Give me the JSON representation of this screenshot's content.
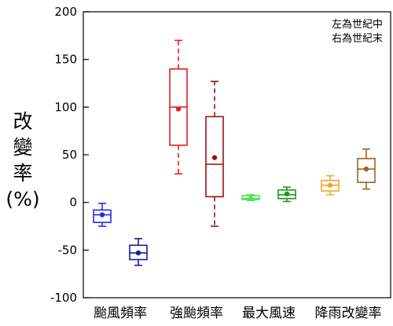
{
  "chart_data": {
    "type": "box",
    "ylabel_lines": [
      "改",
      "變",
      "率",
      "(%)"
    ],
    "ylim": [
      -100,
      200
    ],
    "yticks": [
      -100,
      -50,
      0,
      50,
      100,
      150,
      200
    ],
    "ytick_labels": [
      "-100",
      "-50",
      "0",
      "50",
      "100",
      "150",
      "200"
    ],
    "categories": [
      "颱風頻率",
      "強颱頻率",
      "最大風速",
      "降雨改變率"
    ],
    "legend": [
      "左為世紀中",
      "右為世紀末"
    ],
    "boxes": [
      {
        "category": 0,
        "side": "left",
        "color": "#2a2ae6",
        "min": -25,
        "q1": -21,
        "median": -13,
        "q3": -8,
        "max": -1,
        "mean": -13,
        "dashed": false
      },
      {
        "category": 0,
        "side": "right",
        "color": "#1c1c96",
        "min": -66,
        "q1": -60,
        "median": -53,
        "q3": -45,
        "max": -38,
        "mean": -53,
        "dashed": false
      },
      {
        "category": 1,
        "side": "left",
        "color": "#e61e1e",
        "min": 30,
        "q1": 60,
        "median": 100,
        "q3": 140,
        "max": 170,
        "mean": 98,
        "dashed": true
      },
      {
        "category": 1,
        "side": "right",
        "color": "#961414",
        "min": -25,
        "q1": 6,
        "median": 40,
        "q3": 90,
        "max": 127,
        "mean": 47,
        "dashed": true
      },
      {
        "category": 2,
        "side": "left",
        "color": "#4ce64c",
        "min": 2,
        "q1": 3,
        "median": 4,
        "q3": 7,
        "max": 8,
        "mean": 4,
        "dashed": false
      },
      {
        "category": 2,
        "side": "right",
        "color": "#1e961e",
        "min": 1,
        "q1": 4,
        "median": 8,
        "q3": 13,
        "max": 16,
        "mean": 9,
        "dashed": false
      },
      {
        "category": 3,
        "side": "left",
        "color": "#f5a623",
        "min": 8,
        "q1": 12,
        "median": 18,
        "q3": 23,
        "max": 28,
        "mean": 18,
        "dashed": false
      },
      {
        "category": 3,
        "side": "right",
        "color": "#a0641e",
        "min": 14,
        "q1": 21,
        "median": 35,
        "q3": 46,
        "max": 56,
        "mean": 35,
        "dashed": false
      }
    ]
  }
}
